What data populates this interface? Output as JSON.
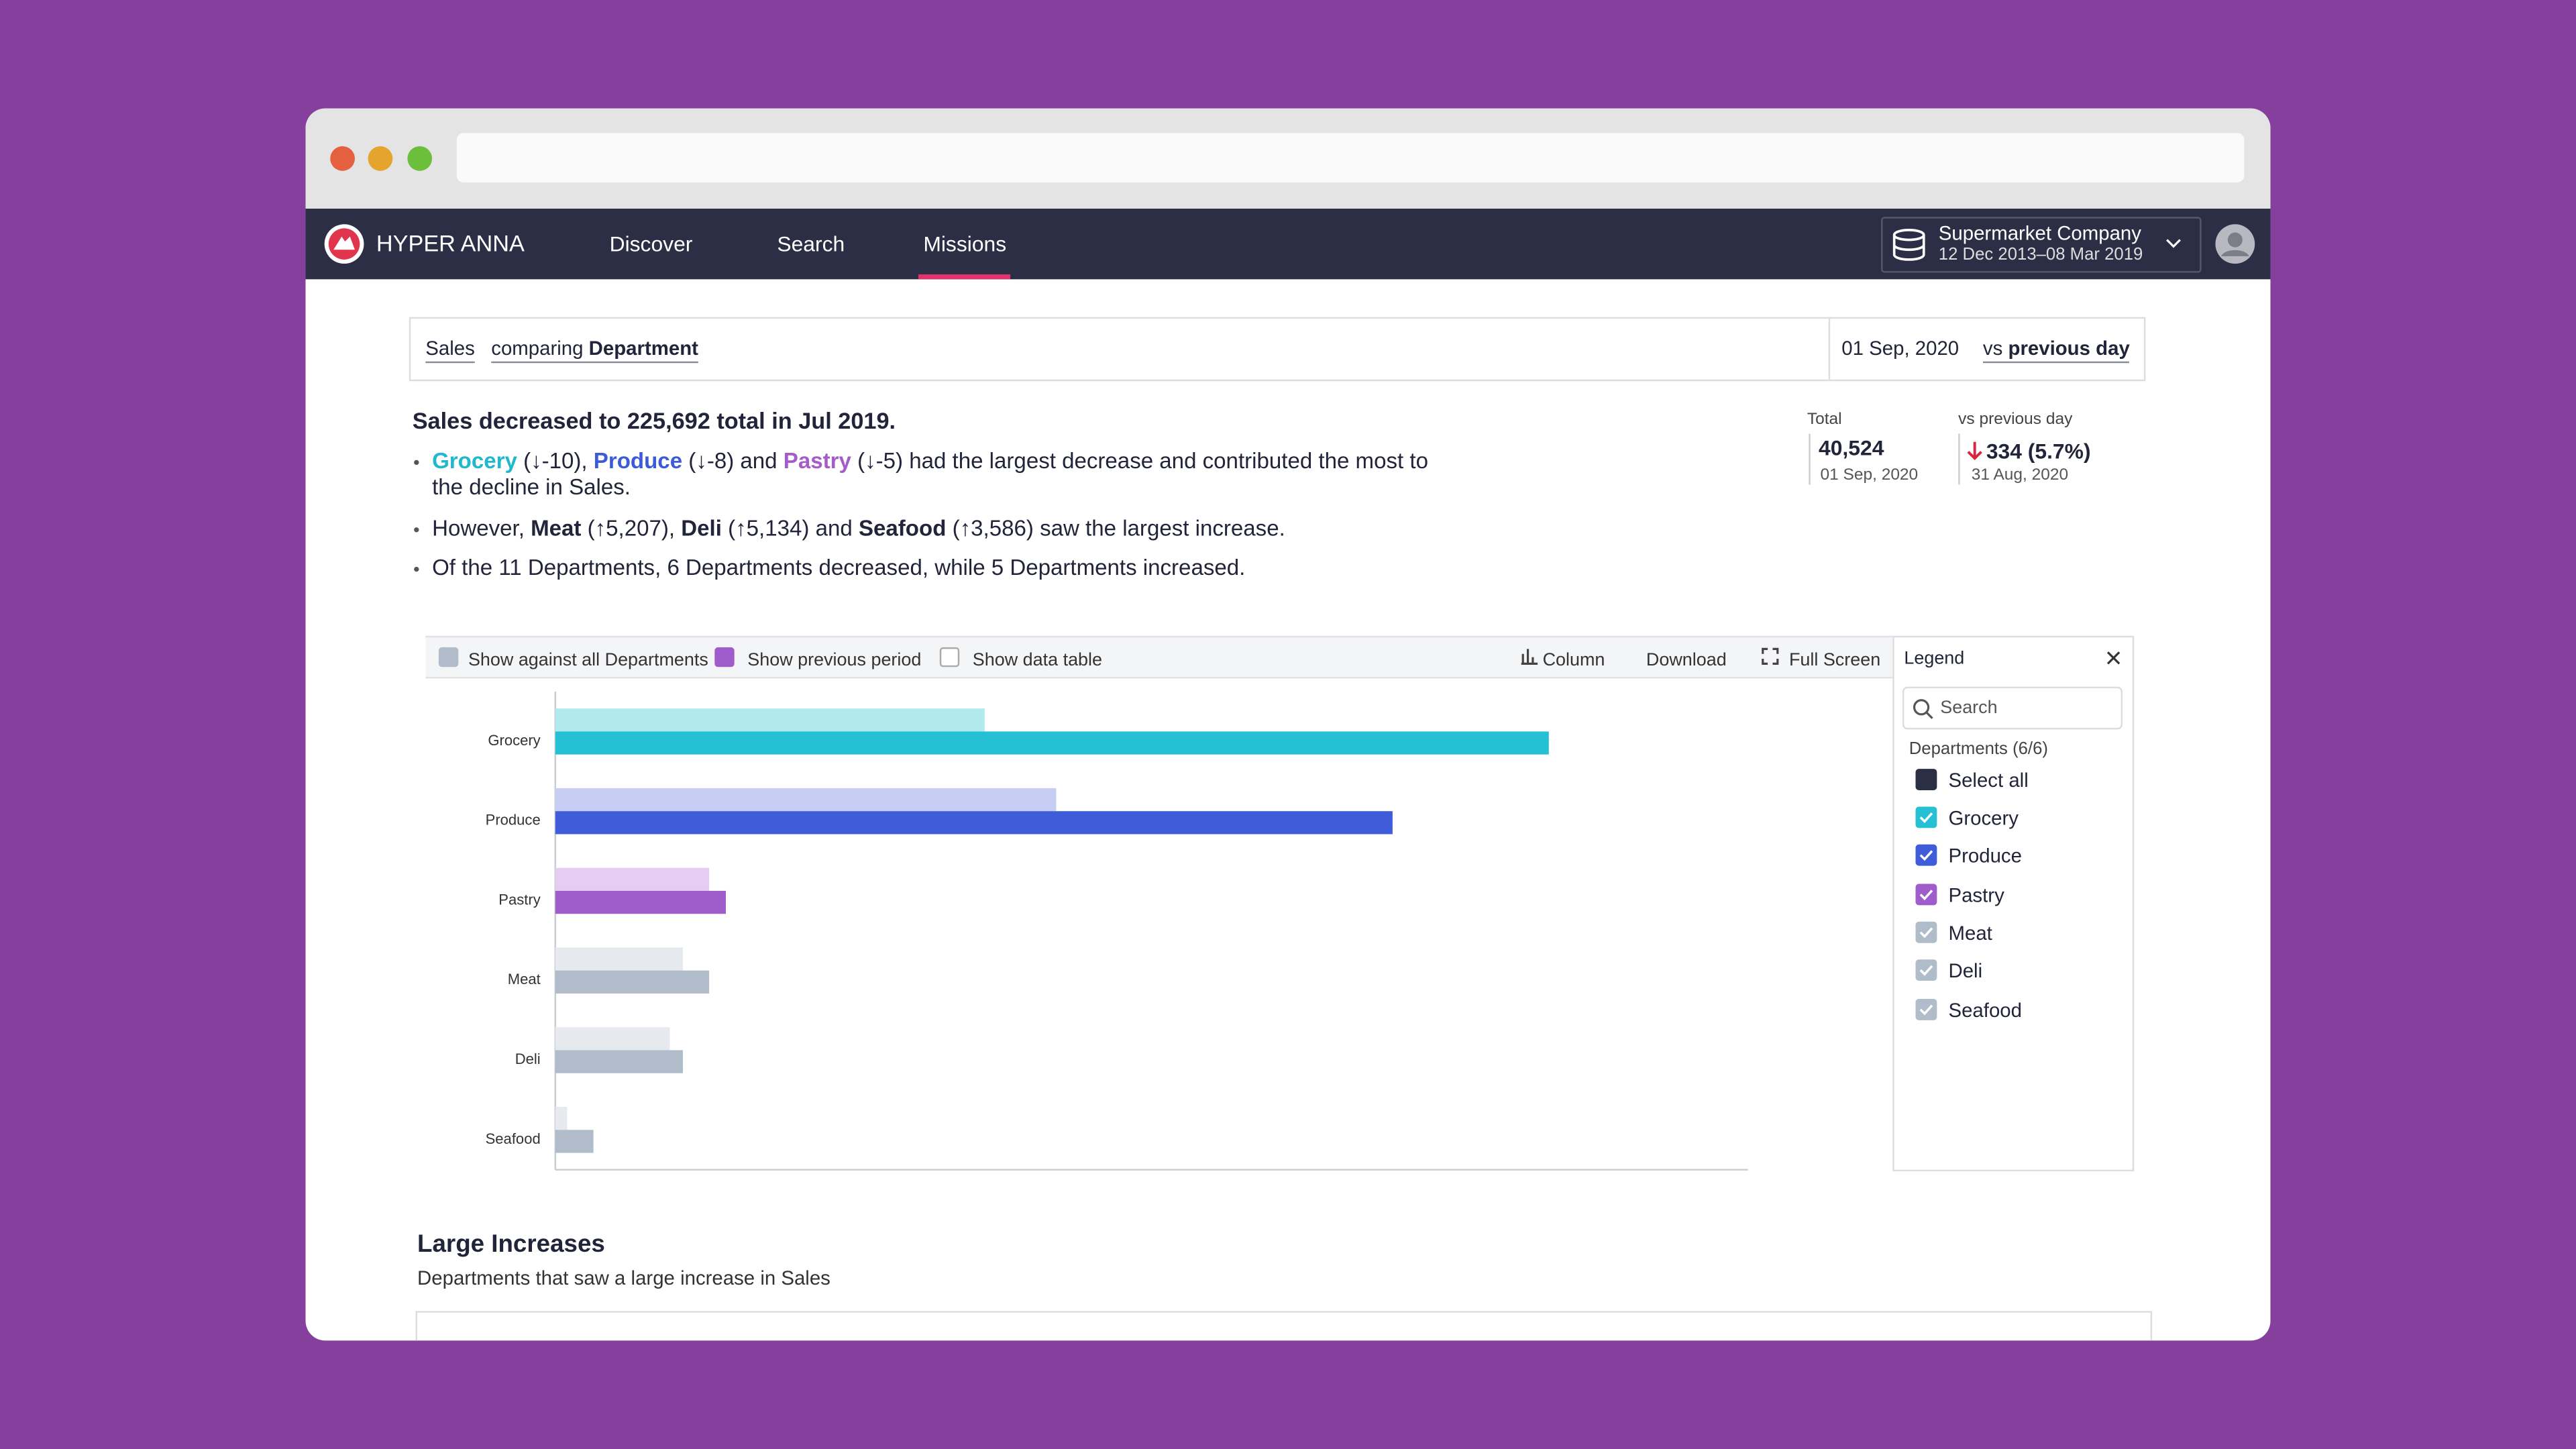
{
  "nav": {
    "brand": "HYPER ANNA",
    "items": [
      "Discover",
      "Search",
      "Missions"
    ],
    "company": "Supermarket Company",
    "date_range": "12 Dec 2013–08 Mar 2019"
  },
  "query": {
    "measure": "Sales",
    "comparing": "comparing",
    "dimension": "Department",
    "date": "01 Sep, 2020",
    "vs": "vs",
    "baseline": "previous day"
  },
  "summary": {
    "headline": "Sales decreased to 225,692 total in Jul 2019.",
    "bullets": [
      [
        "Grocery",
        " (↓-10), ",
        "Produce",
        " (↓-8) and ",
        "Pastry",
        " (↓-5) had the largest decrease and contributed the most to the decline in Sales."
      ],
      [
        "However, ",
        "Meat",
        " (↑5,207), ",
        "Deli",
        " (↑5,134) and ",
        "Seafood",
        " (↑3,586) saw the largest increase."
      ],
      [
        "Of the 11 Departments, 6 Departments decreased, while 5 Departments increased."
      ]
    ]
  },
  "kpi": {
    "total_label": "Total",
    "total": "40,524",
    "total_date": "01 Sep, 2020",
    "change_label": "vs previous day",
    "change": "334 (5.7%)",
    "change_date": "31 Aug, 2020"
  },
  "toolbar": {
    "options": [
      "Show against all Departments",
      "Show previous period",
      "Show data table"
    ],
    "chart_type": "Column",
    "download": "Download",
    "full_screen": "Full Screen"
  },
  "legend": {
    "title": "Legend",
    "search": "Search",
    "group": "Departments (6/6)",
    "select_all": "Select all"
  },
  "chart_data": {
    "type": "hbar",
    "categories": [
      "Grocery",
      "Produce",
      "Pastry",
      "Meat",
      "Deli",
      "Seafood"
    ],
    "xlim": [
      0,
      100
    ],
    "series": [
      {
        "colors": [
          "#b2e9ef",
          "#c6cef4",
          "#e4cdf1",
          "#e6e9ee",
          "#e6e9ee",
          "#e6e9ee"
        ],
        "values": [
          36,
          42,
          12.9,
          10.7,
          9.6,
          1
        ]
      },
      {
        "colors": [
          "#26c0d4",
          "#3f5dd8",
          "#9e5dcb",
          "#b1bccb",
          "#b1bccb",
          "#b1bccb"
        ],
        "values": [
          83.3,
          70.2,
          14.3,
          12.9,
          10.7,
          3.2
        ]
      }
    ]
  },
  "section": {
    "title": "Large Increases",
    "subtitle": "Departments that saw a large increase in Sales"
  }
}
